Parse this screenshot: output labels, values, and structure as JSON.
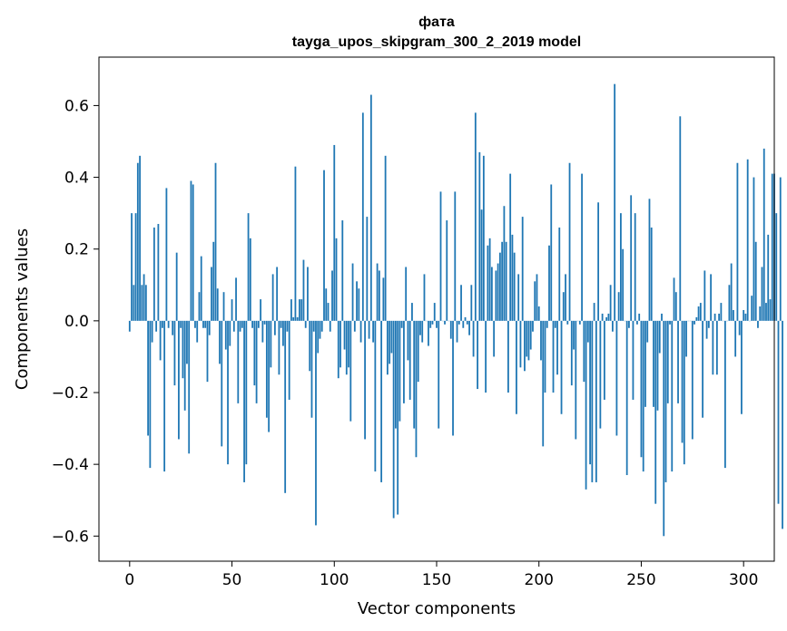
{
  "chart_data": {
    "type": "bar",
    "title_line1": "фата",
    "title_line2": "tayga_upos_skipgram_300_2_2019 model",
    "xlabel": "Vector components",
    "ylabel": "Components values",
    "xlim": [
      -15,
      315
    ],
    "ylim": [
      -0.67,
      0.735
    ],
    "xticks": [
      0,
      50,
      100,
      150,
      200,
      250,
      300
    ],
    "xtick_labels": [
      "0",
      "50",
      "100",
      "150",
      "200",
      "250",
      "300"
    ],
    "yticks": [
      -0.6,
      -0.4,
      -0.2,
      0.0,
      0.2,
      0.4,
      0.6
    ],
    "ytick_labels": [
      "−0.6",
      "−0.4",
      "−0.2",
      "0.0",
      "0.2",
      "0.4",
      "0.6"
    ],
    "bar_color": "#1f77b4",
    "values": [
      -0.03,
      0.3,
      0.1,
      0.3,
      0.44,
      0.46,
      0.1,
      0.13,
      0.1,
      -0.32,
      -0.41,
      -0.06,
      0.26,
      -0.03,
      0.27,
      -0.11,
      -0.02,
      -0.42,
      0.37,
      -0.02,
      0.0,
      -0.04,
      -0.18,
      0.19,
      -0.33,
      -0.02,
      -0.16,
      -0.25,
      -0.12,
      -0.37,
      0.39,
      0.38,
      -0.02,
      -0.06,
      0.08,
      0.18,
      -0.02,
      -0.02,
      -0.17,
      -0.04,
      0.15,
      0.22,
      0.44,
      0.09,
      -0.12,
      -0.35,
      0.08,
      -0.08,
      -0.4,
      -0.07,
      0.06,
      -0.03,
      0.12,
      -0.23,
      -0.03,
      -0.02,
      -0.45,
      -0.4,
      0.3,
      0.23,
      -0.02,
      -0.18,
      -0.23,
      -0.02,
      0.06,
      -0.06,
      -0.01,
      -0.27,
      -0.31,
      -0.13,
      0.13,
      -0.04,
      0.15,
      -0.15,
      -0.02,
      -0.07,
      -0.48,
      -0.03,
      -0.22,
      0.06,
      0.01,
      0.43,
      0.01,
      0.06,
      0.06,
      0.17,
      -0.02,
      0.15,
      -0.14,
      -0.27,
      -0.03,
      -0.57,
      -0.09,
      -0.05,
      -0.03,
      0.42,
      0.09,
      0.05,
      -0.03,
      0.14,
      0.49,
      0.23,
      -0.16,
      -0.13,
      0.28,
      -0.08,
      -0.15,
      -0.13,
      -0.28,
      0.16,
      -0.03,
      0.11,
      0.09,
      -0.06,
      0.58,
      -0.33,
      0.29,
      -0.05,
      0.63,
      -0.06,
      -0.42,
      0.16,
      0.14,
      -0.45,
      0.12,
      0.46,
      -0.15,
      -0.12,
      -0.09,
      -0.55,
      -0.3,
      -0.54,
      -0.28,
      -0.02,
      -0.23,
      0.15,
      -0.11,
      -0.22,
      0.05,
      -0.3,
      -0.38,
      -0.17,
      -0.04,
      -0.06,
      0.13,
      0.0,
      -0.07,
      -0.02,
      -0.01,
      0.05,
      -0.02,
      -0.3,
      0.36,
      0.0,
      -0.01,
      0.28,
      0.0,
      -0.05,
      -0.32,
      0.36,
      -0.06,
      -0.01,
      0.1,
      -0.02,
      0.01,
      -0.01,
      -0.04,
      0.1,
      -0.1,
      0.58,
      -0.19,
      0.47,
      0.31,
      0.46,
      -0.2,
      0.21,
      0.23,
      0.15,
      -0.1,
      0.14,
      0.16,
      0.19,
      0.22,
      0.32,
      0.22,
      -0.2,
      0.41,
      0.24,
      0.19,
      -0.26,
      0.13,
      -0.13,
      0.29,
      -0.14,
      -0.1,
      -0.11,
      -0.08,
      -0.03,
      0.11,
      0.13,
      0.04,
      -0.11,
      -0.35,
      -0.2,
      -0.02,
      0.21,
      0.38,
      -0.2,
      -0.02,
      -0.15,
      0.26,
      -0.26,
      0.08,
      0.13,
      -0.01,
      0.44,
      -0.18,
      -0.08,
      -0.33,
      0.0,
      -0.01,
      0.41,
      -0.17,
      -0.47,
      -0.06,
      -0.4,
      -0.45,
      0.05,
      -0.45,
      0.33,
      -0.3,
      0.02,
      -0.22,
      0.01,
      0.02,
      0.1,
      -0.03,
      0.66,
      -0.32,
      0.08,
      0.3,
      0.2,
      0.0,
      -0.43,
      -0.02,
      0.35,
      -0.22,
      0.3,
      -0.01,
      0.02,
      -0.38,
      -0.42,
      -0.24,
      -0.06,
      0.34,
      0.26,
      -0.24,
      -0.51,
      -0.25,
      -0.09,
      0.02,
      -0.6,
      -0.45,
      -0.23,
      -0.01,
      -0.42,
      0.12,
      0.08,
      -0.23,
      0.57,
      -0.34,
      -0.4,
      -0.1,
      0.0,
      0.0,
      -0.33,
      -0.01,
      0.01,
      0.04,
      0.05,
      -0.27,
      0.14,
      -0.05,
      -0.02,
      0.13,
      -0.15,
      0.02,
      -0.15,
      0.02,
      0.05,
      0.0,
      -0.41,
      0.0,
      0.1,
      0.16,
      0.03,
      -0.1,
      0.44,
      -0.04,
      -0.26,
      0.03,
      0.02,
      0.45,
      0.0,
      0.07,
      0.4,
      0.22,
      -0.02,
      0.04,
      0.15,
      0.48,
      0.05,
      0.24,
      0.06,
      0.41,
      0.41,
      0.3,
      -0.51,
      0.4,
      -0.58
    ]
  }
}
